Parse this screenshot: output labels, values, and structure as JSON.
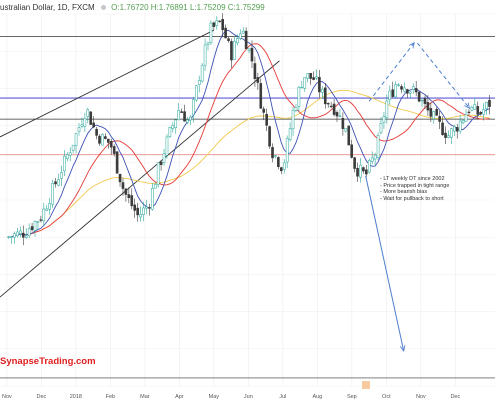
{
  "header": {
    "symbol": "ustralian Dollar, 1D, FXCM",
    "open": "O:1.76720",
    "high": "H:1.76891",
    "low": "L:1.75209",
    "close": "C:1.75299"
  },
  "notes": [
    "- LT weekly DT since 2002",
    "- Price trapped in tight range",
    "- More bearish bias",
    "- Wait for pullback to short"
  ],
  "brand": "SynapseTrading.com",
  "colors": {
    "up": "#26a69a",
    "down": "#3a3a3a",
    "ma_fast": "#3f51b5",
    "ma_mid": "#e53935",
    "ma_slow": "#f2c94c",
    "projection": "#4d7ecf",
    "hline_blue": "#5b5bd6",
    "hline_red": "#e57373",
    "trendline": "#333333"
  },
  "chart_data": {
    "type": "candlestick",
    "instrument": "ustralian Dollar, 1D, FXCM",
    "x_tick_labels": [
      "Nov",
      "Dec",
      "2018",
      "Feb",
      "Mar",
      "Apr",
      "May",
      "Jun",
      "Jul",
      "Aug",
      "Sep",
      "Oct",
      "Nov",
      "Dec"
    ],
    "ohlc_last": {
      "open": 1.7672,
      "high": 1.76891,
      "low": 1.75209,
      "close": 1.75299
    },
    "close_path": [
      [
        0.0,
        0.92
      ],
      [
        0.5,
        0.95
      ],
      [
        1.0,
        1.05
      ],
      [
        1.5,
        1.3
      ],
      [
        2.0,
        1.55
      ],
      [
        2.3,
        1.72
      ],
      [
        2.6,
        1.55
      ],
      [
        3.0,
        1.5
      ],
      [
        3.4,
        1.2
      ],
      [
        3.8,
        1.05
      ],
      [
        4.1,
        1.12
      ],
      [
        4.4,
        1.35
      ],
      [
        4.7,
        1.55
      ],
      [
        5.0,
        1.72
      ],
      [
        5.3,
        1.62
      ],
      [
        5.6,
        1.95
      ],
      [
        5.9,
        2.2
      ],
      [
        6.2,
        2.25
      ],
      [
        6.5,
        2.05
      ],
      [
        6.8,
        2.22
      ],
      [
        7.1,
        2.02
      ],
      [
        7.4,
        1.72
      ],
      [
        7.7,
        1.45
      ],
      [
        8.0,
        1.35
      ],
      [
        8.3,
        1.7
      ],
      [
        8.6,
        1.92
      ],
      [
        8.9,
        1.9
      ],
      [
        9.2,
        1.78
      ],
      [
        9.5,
        1.72
      ],
      [
        9.8,
        1.6
      ],
      [
        10.1,
        1.35
      ],
      [
        10.4,
        1.3
      ],
      [
        10.7,
        1.45
      ],
      [
        11.0,
        1.75
      ],
      [
        11.3,
        1.88
      ],
      [
        11.6,
        1.85
      ],
      [
        11.9,
        1.8
      ],
      [
        12.2,
        1.7
      ],
      [
        12.5,
        1.62
      ],
      [
        12.8,
        1.55
      ],
      [
        13.1,
        1.62
      ],
      [
        13.4,
        1.72
      ],
      [
        13.7,
        1.68
      ],
      [
        14.0,
        1.75
      ]
    ],
    "horizontal_levels": [
      {
        "y": 2.16,
        "color": "trendline"
      },
      {
        "y": 1.78,
        "color": "hline_blue"
      },
      {
        "y": 1.65,
        "color": "trendline"
      },
      {
        "y": 1.43,
        "color": "hline_red"
      },
      {
        "y": 0.05,
        "color": "trendline"
      }
    ],
    "trendlines": [
      {
        "from": [
          -0.2,
          1.54
        ],
        "to": [
          6.0,
          2.2
        ]
      },
      {
        "from": [
          -0.2,
          0.55
        ],
        "to": [
          7.9,
          2.01
        ]
      }
    ],
    "projections": [
      {
        "from": [
          10.5,
          1.76
        ],
        "to": [
          11.8,
          2.12
        ],
        "style": "dashed"
      },
      {
        "from": [
          11.9,
          2.12
        ],
        "to": [
          13.4,
          1.72
        ],
        "style": "dashed"
      },
      {
        "from": [
          10.4,
          1.3
        ],
        "to": [
          11.5,
          0.22
        ],
        "style": "solid"
      }
    ],
    "y_range": [
      0.0,
      2.3
    ],
    "x_range": [
      -0.2,
      14.15
    ],
    "grid": true
  }
}
